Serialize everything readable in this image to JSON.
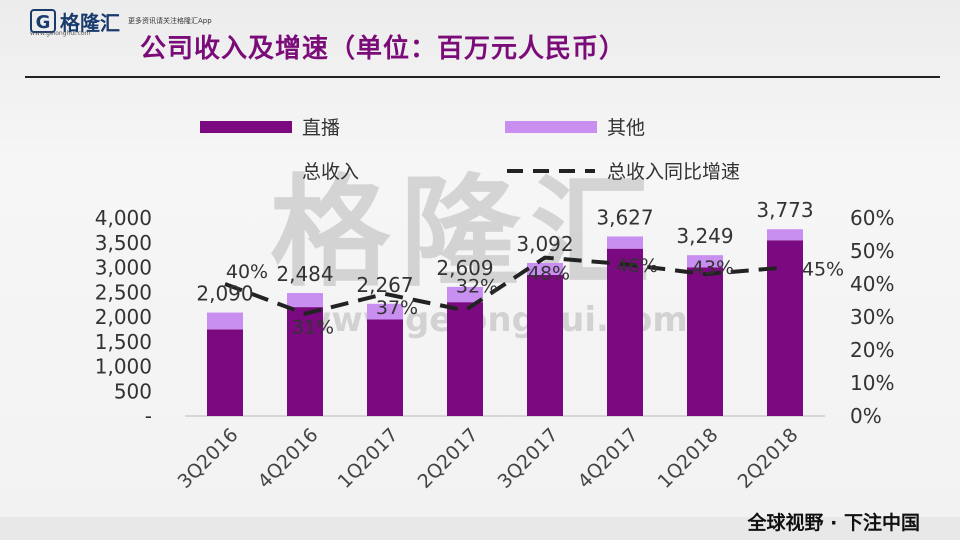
{
  "brand": {
    "logo_letter": "G",
    "name": "格隆汇",
    "url": "www.gelonghui.com",
    "tagline": "更多资讯请关注格隆汇App"
  },
  "title": "公司收入及增速（单位：百万元人民币）",
  "footer": "全球视野 · 下注中国",
  "watermark": {
    "text": "格隆汇",
    "url": "www.gelonghui.com"
  },
  "colors": {
    "live": "#7b0a80",
    "other": "#c88ff0",
    "line": "#222222",
    "title": "#7a0b78"
  },
  "chart_data": {
    "type": "bar",
    "stacked": true,
    "categories": [
      "3Q2016",
      "4Q2016",
      "1Q2017",
      "2Q2017",
      "3Q2017",
      "4Q2017",
      "1Q2018",
      "2Q2018"
    ],
    "series": [
      {
        "name": "直播",
        "values": [
          1750,
          2200,
          1950,
          2300,
          2850,
          3380,
          3000,
          3550
        ]
      },
      {
        "name": "其他",
        "values": [
          340,
          284,
          317,
          309,
          242,
          247,
          249,
          223
        ]
      }
    ],
    "totals": {
      "name": "总收入",
      "values": [
        2090,
        2484,
        2267,
        2609,
        3092,
        3627,
        3249,
        3773
      ]
    },
    "total_labels": [
      "2,090",
      "2,484",
      "2,267",
      "2,609",
      "3,092",
      "3,627",
      "3,249",
      "3,773"
    ],
    "growth": {
      "name": "总收入同比增速",
      "values": [
        40,
        31,
        37,
        32,
        48,
        46,
        43,
        45
      ]
    },
    "growth_labels": [
      "40%",
      "31%",
      "37%",
      "32%",
      "48%",
      "46%",
      "43%",
      "45%"
    ],
    "y_ticks": [
      "-",
      "500",
      "1,000",
      "1,500",
      "2,000",
      "2,500",
      "3,000",
      "3,500",
      "4,000"
    ],
    "y_tick_values": [
      0,
      500,
      1000,
      1500,
      2000,
      2500,
      3000,
      3500,
      4000
    ],
    "y2_ticks": [
      "0%",
      "10%",
      "20%",
      "30%",
      "40%",
      "50%",
      "60%"
    ],
    "y2_tick_values": [
      0,
      10,
      20,
      30,
      40,
      50,
      60
    ],
    "ylim": [
      0,
      4000
    ],
    "y2lim": [
      0,
      60
    ],
    "legend": "top",
    "grid": false
  }
}
